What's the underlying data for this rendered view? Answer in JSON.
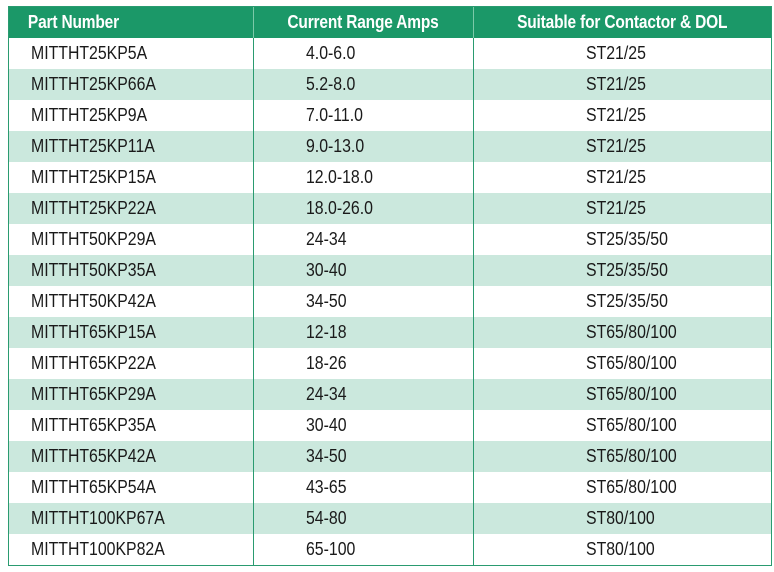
{
  "table": {
    "headers": {
      "part": "Part Number",
      "range": "Current Range Amps",
      "suitable": "Suitable for Contactor & DOL"
    },
    "rows": [
      {
        "part": "MITTHT25KP5A",
        "range": "4.0-6.0",
        "suitable": "ST21/25"
      },
      {
        "part": "MITTHT25KP66A",
        "range": "5.2-8.0",
        "suitable": "ST21/25"
      },
      {
        "part": "MITTHT25KP9A",
        "range": "7.0-11.0",
        "suitable": "ST21/25"
      },
      {
        "part": "MITTHT25KP11A",
        "range": "9.0-13.0",
        "suitable": "ST21/25"
      },
      {
        "part": "MITTHT25KP15A",
        "range": "12.0-18.0",
        "suitable": "ST21/25"
      },
      {
        "part": "MITTHT25KP22A",
        "range": "18.0-26.0",
        "suitable": "ST21/25"
      },
      {
        "part": "MITTHT50KP29A",
        "range": "24-34",
        "suitable": "ST25/35/50"
      },
      {
        "part": "MITTHT50KP35A",
        "range": "30-40",
        "suitable": "ST25/35/50"
      },
      {
        "part": "MITTHT50KP42A",
        "range": "34-50",
        "suitable": "ST25/35/50"
      },
      {
        "part": "MITTHT65KP15A",
        "range": "12-18",
        "suitable": "ST65/80/100"
      },
      {
        "part": "MITTHT65KP22A",
        "range": "18-26",
        "suitable": "ST65/80/100"
      },
      {
        "part": "MITTHT65KP29A",
        "range": "24-34",
        "suitable": "ST65/80/100"
      },
      {
        "part": "MITTHT65KP35A",
        "range": "30-40",
        "suitable": "ST65/80/100"
      },
      {
        "part": "MITTHT65KP42A",
        "range": "34-50",
        "suitable": "ST65/80/100"
      },
      {
        "part": "MITTHT65KP54A",
        "range": "43-65",
        "suitable": "ST65/80/100"
      },
      {
        "part": "MITTHT100KP67A",
        "range": "54-80",
        "suitable": "ST80/100"
      },
      {
        "part": "MITTHT100KP82A",
        "range": "65-100",
        "suitable": "ST80/100"
      }
    ]
  },
  "colors": {
    "header_bg": "#1b9868",
    "stripe": "#cbe8dd",
    "border": "#2a9b70"
  }
}
